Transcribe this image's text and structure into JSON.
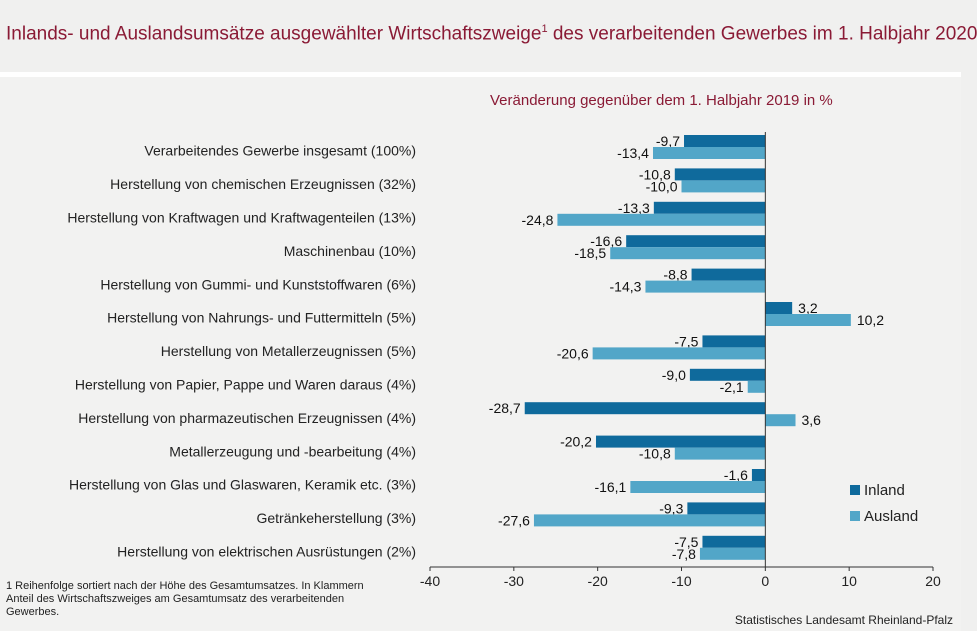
{
  "header": {
    "title": "Inlands- und Auslandsumsätze ausgewählter Wirtschaftszweige",
    "title_sup": "1",
    "title_rest": " des verarbeitenden Gewerbes im 1. Halbjahr 2020"
  },
  "footnote": "1 Reihenfolge sortiert nach der Höhe des Gesamtumsatzes. In Klammern Anteil des Wirtschaftszweiges am Gesamtumsatz des verarbeitenden Gewerbes.",
  "source": "Statistisches Landesamt Rheinland-Pfalz",
  "colors": {
    "title": "#8a1a35",
    "inland": "#0f6a9c",
    "ausland": "#52a6c8",
    "background": "#f2f2f1"
  },
  "chart_data": {
    "type": "bar",
    "orientation": "horizontal",
    "subtitle": "Veränderung gegenüber dem 1. Halbjahr 2019 in %",
    "categories": [
      "Verarbeitendes Gewerbe insgesamt (100%)",
      "Herstellung von chemischen Erzeugnissen (32%)",
      "Herstellung von Kraftwagen und Kraftwagenteilen (13%)",
      "Maschinenbau (10%)",
      "Herstellung von Gummi- und Kunststoffwaren (6%)",
      "Herstellung von Nahrungs- und Futtermitteln (5%)",
      "Herstellung von Metallerzeugnissen (5%)",
      "Herstellung von Papier, Pappe und Waren daraus (4%)",
      "Herstellung von pharmazeutischen Erzeugnissen (4%)",
      "Metallerzeugung und -bearbeitung (4%)",
      "Herstellung von Glas und Glaswaren, Keramik etc. (3%)",
      "Getränkeherstellung (3%)",
      "Herstellung von elektrischen Ausrüstungen (2%)"
    ],
    "series": [
      {
        "name": "Inland",
        "color": "#0f6a9c",
        "values": [
          -9.7,
          -10.8,
          -13.3,
          -16.6,
          -8.8,
          3.2,
          -7.5,
          -9.0,
          -28.7,
          -20.2,
          -1.6,
          -9.3,
          -7.5
        ]
      },
      {
        "name": "Ausland",
        "color": "#52a6c8",
        "values": [
          -13.4,
          -10.0,
          -24.8,
          -18.5,
          -14.3,
          10.2,
          -20.6,
          -2.1,
          3.6,
          -10.8,
          -16.1,
          -27.6,
          -7.8
        ]
      }
    ],
    "xlim": [
      -40,
      20
    ],
    "xticks": [
      -40,
      -30,
      -20,
      -10,
      0,
      10,
      20
    ],
    "decimal_separator": ",",
    "legend_position": "lower-right",
    "grid": false
  }
}
